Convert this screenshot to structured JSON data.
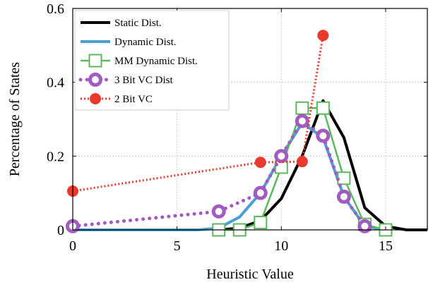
{
  "chart_data": {
    "type": "line",
    "title": "",
    "xlabel": "Heuristic Value",
    "ylabel": "Percentage of States",
    "xlim": [
      0,
      17
    ],
    "ylim": [
      0,
      0.6
    ],
    "x_ticks": [
      0,
      5,
      10,
      15
    ],
    "y_ticks": [
      0,
      0.2,
      0.4,
      0.6
    ],
    "x_tick_labels": [
      "0",
      "5",
      "10",
      "15"
    ],
    "y_tick_labels": [
      "0",
      "0.2",
      "0.4",
      "0.6"
    ],
    "grid": true,
    "legend_position": "top-left",
    "series": [
      {
        "name": "Static Dist.",
        "color": "#000000",
        "line_style": "solid",
        "marker": "none",
        "x": [
          7,
          8,
          9,
          10,
          11,
          12,
          13,
          14,
          15,
          16,
          17
        ],
        "y": [
          0.0,
          0.005,
          0.025,
          0.085,
          0.2,
          0.35,
          0.25,
          0.06,
          0.01,
          0.0,
          0.0
        ]
      },
      {
        "name": "Dynamic Dist.",
        "color": "#4a9fd4",
        "line_style": "solid",
        "marker": "none",
        "x": [
          0,
          6,
          7,
          8,
          9,
          10,
          11,
          12,
          13,
          14,
          15
        ],
        "y": [
          0.0,
          0.0,
          0.005,
          0.035,
          0.1,
          0.2,
          0.29,
          0.25,
          0.09,
          0.01,
          0.0
        ]
      },
      {
        "name": "MM Dynamic Dist.",
        "color": "#5cb85c",
        "line_style": "solid",
        "marker": "square",
        "x": [
          7,
          8,
          9,
          10,
          11,
          12,
          13,
          14,
          15
        ],
        "y": [
          0.0,
          0.0,
          0.02,
          0.17,
          0.33,
          0.33,
          0.14,
          0.015,
          0.0
        ]
      },
      {
        "name": "3 Bit VC Dist",
        "color": "#a05cc0",
        "line_style": "dotted",
        "marker": "ring",
        "x": [
          0,
          7,
          9,
          10,
          11,
          12,
          13,
          14
        ],
        "y": [
          0.01,
          0.05,
          0.1,
          0.2,
          0.295,
          0.255,
          0.09,
          0.01
        ]
      },
      {
        "name": "2 Bit VC",
        "color": "#e8392c",
        "line_style": "dotted",
        "marker": "circle",
        "x": [
          0,
          9,
          11,
          12
        ],
        "y": [
          0.105,
          0.183,
          0.185,
          0.527
        ]
      }
    ]
  }
}
